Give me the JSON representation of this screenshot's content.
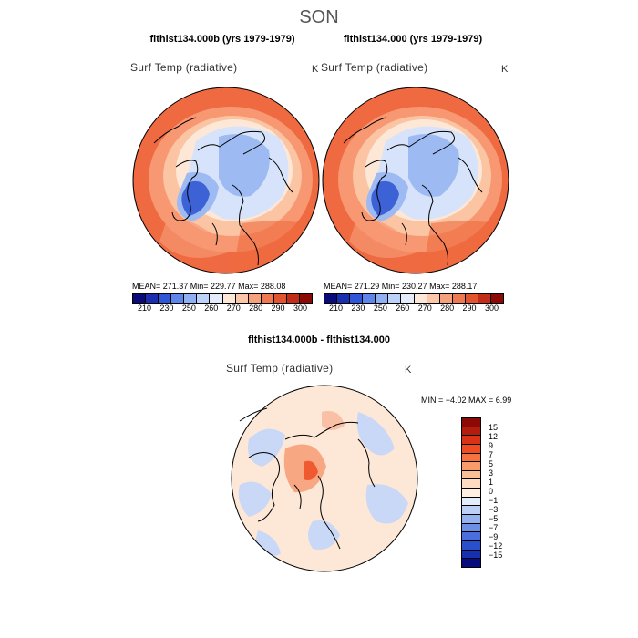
{
  "season": "SON",
  "panels": [
    {
      "title": "flthist134.000b (yrs 1979-1979)",
      "variable": "Surf Temp (radiative)",
      "unit": "K",
      "stats": {
        "mean": "271.37",
        "min": "229.77",
        "max": "288.08"
      },
      "stats_text": "MEAN= 271.37   Min= 229.77   Max= 288.08"
    },
    {
      "title": "flthist134.000 (yrs 1979-1979)",
      "variable": "Surf Temp (radiative)",
      "unit": "K",
      "stats": {
        "mean": "271.29",
        "min": "230.27",
        "max": "288.17"
      },
      "stats_text": "MEAN= 271.29   Min= 230.27   Max= 288.17"
    }
  ],
  "abs_colorbar": {
    "tick_labels": [
      "210",
      "230",
      "250",
      "260",
      "270",
      "280",
      "290",
      "300"
    ],
    "colors": [
      "#0a0a78",
      "#1a2fb0",
      "#2f55d8",
      "#5e86ea",
      "#8fb0f2",
      "#bcd2f8",
      "#e4ecfb",
      "#fde7d6",
      "#fbc7a8",
      "#f7a07c",
      "#f07850",
      "#e2532f",
      "#c32c17",
      "#8b0a05"
    ]
  },
  "diff_panel": {
    "title": "flthist134.000b - flthist134.000",
    "variable": "Surf Temp (radiative)",
    "unit": "K",
    "min": "-4.02",
    "max": "6.99",
    "stats_text": "MIN =   −4.02 MAX =    6.99"
  },
  "diff_colorbar": {
    "tick_labels": [
      "15",
      "12",
      "9",
      "7",
      "5",
      "3",
      "1",
      "0",
      "−1",
      "−3",
      "−5",
      "−7",
      "−9",
      "−12",
      "−15"
    ],
    "colors": [
      "#8b0a05",
      "#b31d0e",
      "#d93216",
      "#ef4c22",
      "#f6733f",
      "#f99a6b",
      "#fbbd96",
      "#fddcc2",
      "#fff0e2",
      "#e3ecfb",
      "#bcd0f6",
      "#94b2ef",
      "#6d90e6",
      "#4a6edb",
      "#2a4fcd",
      "#1530b3",
      "#080a80"
    ]
  },
  "map_colors": {
    "warm_outer": "#ef6a40",
    "warm_mid": "#f79872",
    "warm_light": "#fbc4a3",
    "cream": "#fde7d6",
    "cool_light": "#d6e3fa",
    "cool_mid": "#9dbaf2",
    "cool_deep": "#3c62d6",
    "diff_bg": "#fde7d6",
    "diff_blue": "#c8d8f6",
    "diff_warm": "#f8a783"
  }
}
